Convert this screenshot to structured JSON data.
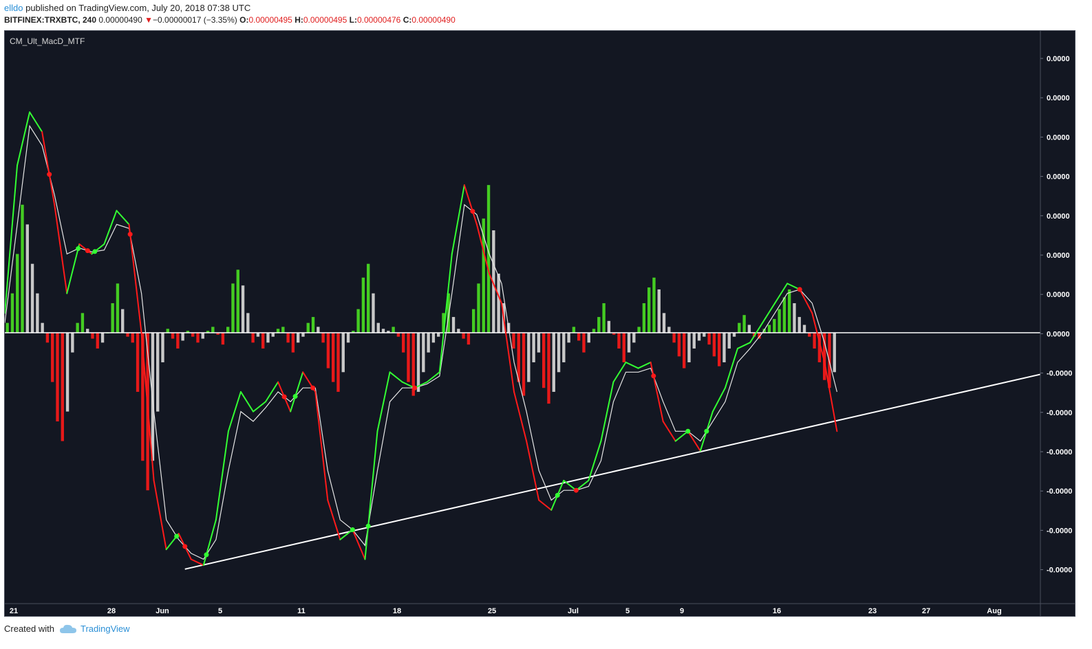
{
  "header": {
    "author": "elldo",
    "published_text": "published on TradingView.com, July 20, 2018 07:38 UTC",
    "symbol": "BITFINEX:TRXBTC, 240",
    "last_price": "0.00000490",
    "change_arrow": "▼",
    "change": "−0.00000017 (−3.35%)",
    "open_label": "O:",
    "open": "0.00000495",
    "high_label": "H:",
    "high": "0.00000495",
    "low_label": "L:",
    "low": "0.00000476",
    "close_label": "C:",
    "close": "0.00000490"
  },
  "footer": {
    "created_with": "Created with",
    "brand": "TradingView"
  },
  "colors": {
    "background": "#131722",
    "bull": "#33ff33",
    "bear": "#ff1a1a",
    "signal": "#e6e6e6",
    "hist_up": "#44cc22",
    "hist_down": "#e61919",
    "hist_fade": "#c8c8c8",
    "trendline": "#ffffff",
    "highlight": "#e8d020"
  },
  "chart_data": {
    "type": "line",
    "indicator_label": "CM_Ult_MacD_MTF",
    "y_tick_labels": [
      "0.0000",
      "0.0000",
      "0.0000",
      "0.0000",
      "0.0000",
      "0.0000",
      "0.0000",
      "0.0000",
      "-0.0000",
      "-0.0000",
      "-0.0000",
      "-0.0000",
      "-0.0000",
      "-0.0000"
    ],
    "x_tick_labels": [
      "21",
      "28",
      "Jun",
      "5",
      "11",
      "18",
      "25",
      "Jul",
      "5",
      "9",
      "16",
      "23",
      "27",
      "Aug"
    ],
    "ylim": [
      -13,
      13
    ],
    "zero_line": true,
    "macd": {
      "x": [
        0,
        1,
        2,
        3,
        4,
        5,
        6,
        7,
        8,
        9,
        10,
        11,
        12,
        13,
        14,
        15,
        16,
        17,
        18,
        19,
        20,
        21,
        22,
        23,
        24,
        25,
        26,
        27,
        28,
        29,
        30,
        31,
        32,
        33,
        34,
        35,
        36,
        37,
        38,
        39,
        40,
        41,
        42,
        43,
        44,
        45,
        46,
        47,
        48,
        49,
        50,
        51,
        52,
        53,
        54,
        55,
        56,
        57,
        58,
        59,
        60,
        61,
        62,
        63,
        64,
        65,
        66,
        67
      ],
      "y": [
        1.0,
        8.5,
        11.2,
        10.2,
        6.5,
        2.0,
        4.5,
        4.0,
        4.5,
        6.2,
        5.5,
        0.0,
        -7.5,
        -11.0,
        -10.2,
        -11.5,
        -11.8,
        -9.5,
        -5.0,
        -3.0,
        -4.0,
        -3.5,
        -2.5,
        -4.0,
        -2.0,
        -3.0,
        -8.5,
        -10.5,
        -10.0,
        -11.5,
        -5.0,
        -2.0,
        -2.5,
        -2.8,
        -2.5,
        -2.0,
        4.0,
        7.5,
        5.5,
        3.0,
        1.5,
        -3.0,
        -5.5,
        -8.5,
        -9.0,
        -7.5,
        -8.0,
        -7.5,
        -5.5,
        -2.5,
        -1.5,
        -1.8,
        -1.5,
        -4.5,
        -5.5,
        -5.0,
        -6.0,
        -4.0,
        -2.8,
        -0.8,
        -0.5,
        0.5,
        1.5,
        2.5,
        2.2,
        1.0,
        -1.5,
        -5.0
      ],
      "signal": [
        0.5,
        5.5,
        10.5,
        9.5,
        7.0,
        4.0,
        4.3,
        4.1,
        4.2,
        5.5,
        5.3,
        2.0,
        -4.0,
        -9.5,
        -10.5,
        -11.2,
        -11.5,
        -10.5,
        -7.0,
        -4.0,
        -4.5,
        -3.8,
        -3.0,
        -3.5,
        -2.8,
        -2.8,
        -7.0,
        -9.5,
        -10.0,
        -10.8,
        -7.0,
        -3.5,
        -2.8,
        -2.8,
        -2.6,
        -2.2,
        2.0,
        6.5,
        6.0,
        4.0,
        2.5,
        -1.5,
        -4.0,
        -7.0,
        -8.5,
        -8.0,
        -8.0,
        -7.8,
        -6.5,
        -3.5,
        -2.0,
        -2.0,
        -1.8,
        -3.5,
        -5.0,
        -5.0,
        -5.5,
        -4.5,
        -3.5,
        -1.5,
        -0.8,
        0.0,
        1.0,
        2.0,
        2.2,
        1.5,
        -0.5,
        -3.0
      ]
    },
    "trendline": {
      "x": [
        14.5,
        95
      ],
      "y": [
        -12.0,
        -2.1
      ]
    },
    "histogram": [
      0.5,
      2.0,
      4.0,
      6.5,
      5.5,
      3.5,
      2.0,
      0.5,
      -0.5,
      -2.5,
      -4.5,
      -5.5,
      -4.0,
      -1.0,
      0.5,
      1.0,
      0.2,
      -0.3,
      -0.8,
      -0.5,
      0.0,
      1.5,
      2.5,
      1.2,
      -0.2,
      -0.5,
      -3.0,
      -6.5,
      -8.0,
      -6.5,
      -4.0,
      -1.5,
      0.2,
      -0.3,
      -0.8,
      -0.4,
      0.1,
      -0.2,
      -0.5,
      -0.3,
      0.1,
      0.3,
      -0.1,
      -0.6,
      0.3,
      2.5,
      3.2,
      2.4,
      1.0,
      -0.5,
      -0.2,
      -0.8,
      -0.5,
      -0.2,
      0.2,
      0.3,
      -0.5,
      -1.0,
      -0.5,
      -0.2,
      0.5,
      0.8,
      0.3,
      -0.5,
      -1.8,
      -2.5,
      -3.0,
      -2.0,
      -0.5,
      0.1,
      1.2,
      2.8,
      3.5,
      2.0,
      0.5,
      0.2,
      0.1,
      0.3,
      -0.2,
      -1.0,
      -2.5,
      -3.2,
      -3.0,
      -2.0,
      -1.0,
      -0.5,
      -0.2,
      1.0,
      2.0,
      0.8,
      0.2,
      -0.3,
      -0.6,
      1.2,
      2.5,
      5.8,
      7.5,
      5.2,
      3.0,
      1.5,
      0.5,
      -0.8,
      -2.5,
      -3.2,
      -2.5,
      -1.5,
      -1.0,
      -2.8,
      -3.6,
      -3.0,
      -2.0,
      -1.5,
      -0.5,
      0.3,
      -0.4,
      -1.0,
      -0.5,
      0.2,
      0.8,
      1.5,
      0.6,
      -0.1,
      -0.8,
      -1.5,
      -1.0,
      -0.5,
      0.3,
      1.5,
      2.3,
      2.8,
      2.2,
      1.0,
      0.3,
      -0.5,
      -1.2,
      -1.8,
      -1.5,
      -0.8,
      -0.4,
      -0.2,
      -0.6,
      -1.2,
      -1.7,
      -1.5,
      -0.8,
      -0.2,
      0.5,
      0.9,
      0.4,
      -0.2,
      -0.3,
      0.2,
      0.4,
      0.7,
      1.2,
      1.8,
      2.2,
      1.5,
      0.8,
      0.4,
      -0.2,
      -0.8,
      -1.5,
      -2.4,
      -2.8,
      -2.0
    ]
  }
}
